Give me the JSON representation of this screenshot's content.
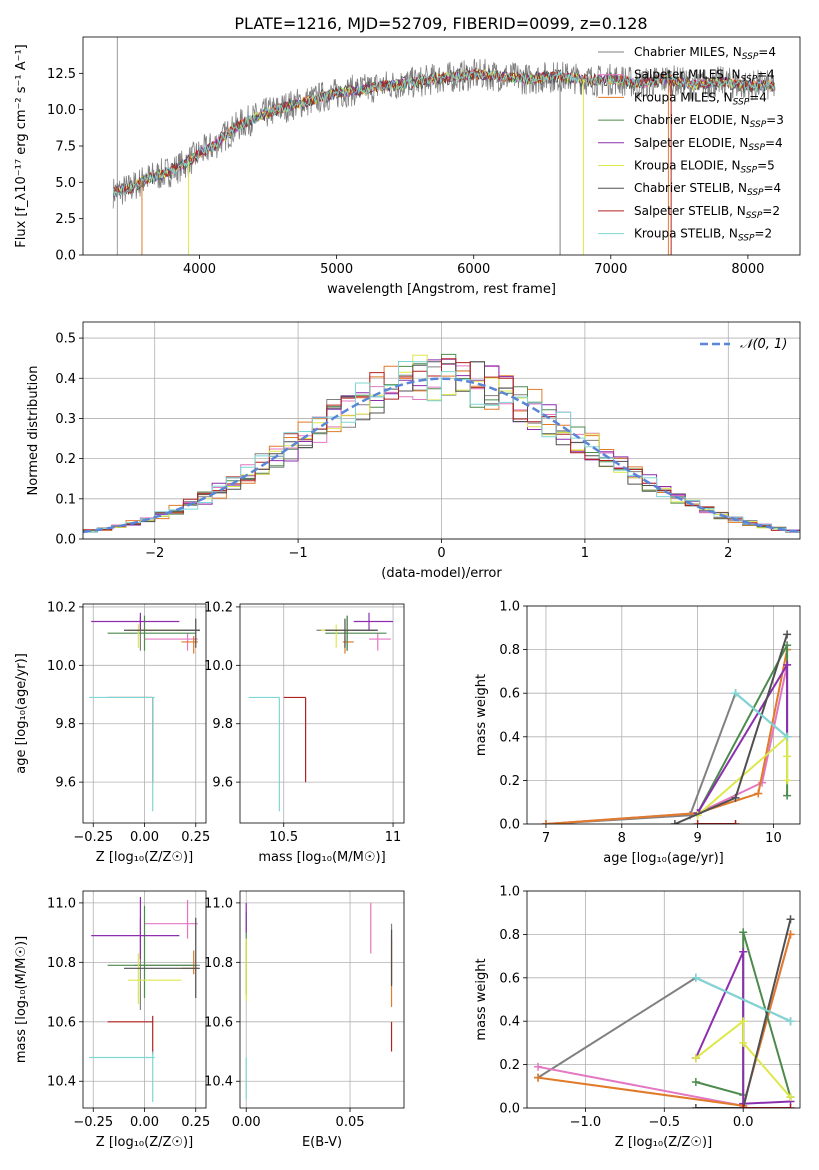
{
  "figure_title": "PLATE=1216, MJD=52709, FIBERID=0099, z=0.128",
  "colors": {
    "Chabrier MILES": "#808080",
    "Salpeter MILES": "#e377c2",
    "Kroupa MILES": "#e07b2a",
    "Chabrier ELODIE": "#4d8a4d",
    "Salpeter ELODIE": "#8b2fae",
    "Kroupa ELODIE": "#dde84a",
    "Chabrier STELIB": "#505050",
    "Salpeter STELIB": "#b22222",
    "Kroupa STELIB": "#7fd6d6",
    "normal": "#5b85d6"
  },
  "chart_data": [
    {
      "id": "spectrum",
      "type": "line",
      "xlabel": "wavelength [Angstrom, rest frame]",
      "ylabel": "Flux [f_λ10⁻¹⁷ erg cm⁻² s⁻¹ A⁻¹]",
      "xlim": [
        3150,
        8380
      ],
      "ylim": [
        0,
        15
      ],
      "xticks": [
        4000,
        5000,
        6000,
        7000,
        8000
      ],
      "yticks": [
        0.0,
        2.5,
        5.0,
        7.5,
        10.0,
        12.5
      ],
      "grid": false,
      "legend_position": "upper right",
      "series_envelope": {
        "x": [
          3370,
          3500,
          3600,
          3700,
          3800,
          3900,
          4000,
          4100,
          4200,
          4300,
          4400,
          4500,
          4600,
          4700,
          4800,
          4900,
          5000,
          5100,
          5200,
          5300,
          5400,
          5500,
          5600,
          5700,
          5800,
          5900,
          6000,
          6100,
          6200,
          6300,
          6400,
          6500,
          6600,
          6700,
          6800,
          6900,
          7000,
          7100,
          7200,
          7300,
          7400,
          7500,
          7600,
          7700,
          7800,
          7900,
          8000,
          8100,
          8200
        ],
        "y": [
          4.3,
          4.6,
          5.2,
          5.5,
          5.8,
          6.3,
          7.0,
          7.5,
          8.3,
          9.0,
          9.4,
          9.8,
          10.1,
          10.4,
          10.6,
          10.9,
          11.1,
          11.3,
          11.4,
          11.6,
          11.7,
          11.8,
          11.9,
          12.1,
          12.2,
          12.3,
          12.4,
          12.4,
          12.3,
          12.2,
          12.1,
          12.2,
          12.3,
          12.2,
          12.1,
          12.0,
          12.1,
          12.0,
          11.8,
          11.9,
          12.1,
          11.9,
          11.7,
          11.8,
          11.9,
          11.8,
          11.6,
          11.7,
          11.6
        ]
      },
      "series": [
        {
          "name": "Chabrier MILES, N_SSP=4",
          "name_main": "Chabrier MILES, N",
          "sub": "SSP",
          "suffix": "=4"
        },
        {
          "name": "Salpeter MILES, N_SSP=4",
          "name_main": "Salpeter MILES, N",
          "sub": "SSP",
          "suffix": "=4"
        },
        {
          "name": "Kroupa MILES, N_SSP=4",
          "name_main": "Kroupa MILES, N",
          "sub": "SSP",
          "suffix": "=4"
        },
        {
          "name": "Chabrier ELODIE, N_SSP=3",
          "name_main": "Chabrier ELODIE, N",
          "sub": "SSP",
          "suffix": "=3"
        },
        {
          "name": "Salpeter ELODIE, N_SSP=4",
          "name_main": "Salpeter ELODIE, N",
          "sub": "SSP",
          "suffix": "=4"
        },
        {
          "name": "Kroupa ELODIE, N_SSP=5",
          "name_main": "Kroupa ELODIE, N",
          "sub": "SSP",
          "suffix": "=5"
        },
        {
          "name": "Chabrier STELIB, N_SSP=4",
          "name_main": "Chabrier STELIB, N",
          "sub": "SSP",
          "suffix": "=4"
        },
        {
          "name": "Salpeter STELIB, N_SSP=2",
          "name_main": "Salpeter STELIB, N",
          "sub": "SSP",
          "suffix": "=2"
        },
        {
          "name": "Kroupa STELIB, N_SSP=2",
          "name_main": "Kroupa STELIB, N",
          "sub": "SSP",
          "suffix": "=2"
        }
      ]
    },
    {
      "id": "residuals",
      "type": "line",
      "xlabel": "(data-model)/error",
      "ylabel": "Normed distribution",
      "xlim": [
        -2.5,
        2.5
      ],
      "ylim": [
        0,
        0.54
      ],
      "xticks": [
        -2,
        -1,
        0,
        1,
        2
      ],
      "yticks": [
        0.0,
        0.1,
        0.2,
        0.3,
        0.4,
        0.5
      ],
      "grid": true,
      "legend_position": "upper right",
      "normal_label": "𝒩(0, 1)"
    },
    {
      "id": "age_vs_Z",
      "type": "scatter",
      "xlabel": "Z [log₁₀(Z/Z☉)]",
      "ylabel": "age  [log₁₀(age/yr)]",
      "xlim": [
        -0.3,
        0.3
      ],
      "ylim": [
        9.46,
        10.21
      ],
      "xticks": [
        -0.25,
        0.0,
        0.25
      ],
      "xticklabels": [
        "−0.25",
        "0.00",
        "0.25"
      ],
      "yticks": [
        9.6,
        9.8,
        10.0,
        10.2
      ],
      "grid": true
    },
    {
      "id": "age_vs_mass",
      "type": "scatter",
      "xlabel": "mass [log₁₀(M/M☉)]",
      "xlim": [
        10.3,
        11.05
      ],
      "ylim": [
        9.46,
        10.21
      ],
      "xticks": [
        10.5,
        11.0
      ],
      "yticks": [
        9.6,
        9.8,
        10.0,
        10.2
      ],
      "grid": true
    },
    {
      "id": "weight_vs_age",
      "type": "line",
      "xlabel": "age  [log₁₀(age/yr)]",
      "ylabel": "mass weight",
      "xlim": [
        6.75,
        10.35
      ],
      "ylim": [
        0,
        1
      ],
      "xticks": [
        7,
        8,
        9,
        10
      ],
      "yticks": [
        0.0,
        0.2,
        0.4,
        0.6,
        0.8,
        1.0
      ],
      "grid": true
    },
    {
      "id": "mass_vs_Z",
      "type": "scatter",
      "xlabel": "Z [log₁₀(Z/Z☉)]",
      "ylabel": "mass [log₁₀(M/M☉)]",
      "xlim": [
        -0.3,
        0.3
      ],
      "ylim": [
        10.31,
        11.04
      ],
      "xticks": [
        -0.25,
        0.0,
        0.25
      ],
      "xticklabels": [
        "−0.25",
        "0.00",
        "0.25"
      ],
      "yticks": [
        10.4,
        10.6,
        10.8,
        11.0
      ],
      "grid": true
    },
    {
      "id": "mass_vs_ebv",
      "type": "scatter",
      "xlabel": "E(B-V)",
      "xlim": [
        -0.003,
        0.076
      ],
      "ylim": [
        10.31,
        11.04
      ],
      "xticks": [
        0.0,
        0.05
      ],
      "xticklabels": [
        "0.00",
        "0.05"
      ],
      "yticks": [
        10.4,
        10.6,
        10.8,
        11.0
      ],
      "grid": true
    },
    {
      "id": "weight_vs_Z",
      "type": "line",
      "xlabel": "Z [log₁₀(Z/Z☉)]",
      "ylabel": "mass weight",
      "xlim": [
        -1.37,
        0.36
      ],
      "ylim": [
        0,
        1
      ],
      "xticks": [
        -1.0,
        -0.5,
        0.0
      ],
      "xticklabels": [
        "−1.0",
        "−0.5",
        "0.0"
      ],
      "yticks": [
        0.0,
        0.2,
        0.4,
        0.6,
        0.8,
        1.0
      ],
      "grid": true
    }
  ],
  "models": [
    {
      "key": "Chabrier MILES",
      "Z": -0.02,
      "age": 10.12,
      "mass": 10.79,
      "ebv": 0.07,
      "zerr": [
        -0.05,
        0.27
      ],
      "aerr": [
        10.05,
        10.17
      ],
      "merr_m": [
        10.65,
        10.93
      ],
      "eerr": [
        10.73,
        10.93
      ],
      "w_age": [
        [
          7.0,
          0.0
        ],
        [
          8.9,
          0.04
        ],
        [
          9.5,
          0.6
        ],
        [
          10.18,
          0.4
        ]
      ],
      "w_Z": [
        [
          -1.3,
          0.14
        ],
        [
          -0.3,
          0.6
        ],
        [
          0.3,
          0.4
        ]
      ]
    },
    {
      "key": "Salpeter MILES",
      "Z": 0.21,
      "age": 10.09,
      "mass": 10.93,
      "ebv": 0.06,
      "zerr": [
        0.0,
        0.26
      ],
      "aerr": [
        10.05,
        10.11
      ],
      "merr_m": [
        10.89,
        10.99
      ],
      "eerr": [
        10.83,
        11.0
      ],
      "w_age": [
        [
          7.0,
          0.0
        ],
        [
          9.0,
          0.05
        ],
        [
          9.85,
          0.19
        ],
        [
          10.18,
          0.73
        ]
      ],
      "w_Z": [
        [
          -1.3,
          0.19
        ],
        [
          0.0,
          0.01
        ],
        [
          0.3,
          0.8
        ]
      ]
    },
    {
      "key": "Kroupa MILES",
      "Z": 0.24,
      "age": 10.08,
      "mass": 10.78,
      "ebv": 0.07,
      "zerr": [
        0.18,
        0.26
      ],
      "aerr": [
        10.04,
        10.1
      ],
      "merr_m": [
        10.77,
        10.82
      ],
      "eerr": [
        10.65,
        10.88
      ],
      "w_age": [
        [
          7.0,
          0.0
        ],
        [
          9.0,
          0.05
        ],
        [
          9.8,
          0.14
        ],
        [
          10.18,
          0.8
        ]
      ],
      "w_Z": [
        [
          -1.3,
          0.14
        ],
        [
          0.0,
          0.01
        ],
        [
          0.3,
          0.8
        ]
      ]
    },
    {
      "key": "Chabrier ELODIE",
      "Z": 0.0,
      "age": 10.11,
      "mass": 10.79,
      "ebv": 0.0,
      "zerr": [
        -0.18,
        0.25
      ],
      "aerr": [
        10.05,
        10.17
      ],
      "merr_m": [
        10.69,
        10.97
      ],
      "eerr": [
        10.69,
        10.97
      ],
      "w_age": [
        [
          9.0,
          0.05
        ],
        [
          10.18,
          0.82
        ],
        [
          10.18,
          0.13
        ]
      ],
      "w_Z": [
        [
          -0.3,
          0.12
        ],
        [
          0.0,
          0.06
        ],
        [
          0.0,
          0.81
        ],
        [
          0.3,
          0.05
        ]
      ]
    },
    {
      "key": "Salpeter ELODIE",
      "Z": -0.02,
      "age": 10.15,
      "mass": 10.89,
      "ebv": 0.0,
      "zerr": [
        -0.26,
        0.17
      ],
      "aerr": [
        10.12,
        10.18
      ],
      "merr_m": [
        10.82,
        11.0
      ],
      "eerr": [
        10.9,
        11.0
      ],
      "w_age": [
        [
          9.0,
          0.05
        ],
        [
          10.18,
          0.73
        ],
        [
          10.18,
          0.4
        ]
      ],
      "w_Z": [
        [
          -0.3,
          0.23
        ],
        [
          0.0,
          0.72
        ],
        [
          0.0,
          0.02
        ],
        [
          0.3,
          0.03
        ]
      ]
    },
    {
      "key": "Kroupa ELODIE",
      "Z": -0.03,
      "age": 10.12,
      "mass": 10.74,
      "ebv": 0.0,
      "zerr": [
        -0.08,
        0.18
      ],
      "aerr": [
        10.06,
        10.14
      ],
      "merr_m": [
        10.67,
        10.81
      ],
      "eerr": [
        10.67,
        10.88
      ],
      "w_age": [
        [
          9.0,
          0.04
        ],
        [
          10.18,
          0.4
        ],
        [
          10.18,
          0.2
        ],
        [
          10.18,
          0.31
        ]
      ],
      "w_Z": [
        [
          -0.3,
          0.23
        ],
        [
          0.0,
          0.4
        ],
        [
          0.0,
          0.3
        ],
        [
          0.3,
          0.05
        ]
      ]
    },
    {
      "key": "Chabrier STELIB",
      "Z": 0.25,
      "age": 10.12,
      "mass": 10.78,
      "ebv": 0.07,
      "zerr": [
        -0.1,
        0.27
      ],
      "aerr": [
        10.06,
        10.16
      ],
      "merr_m": [
        10.69,
        10.93
      ],
      "eerr": [
        10.72,
        10.91
      ],
      "w_age": [
        [
          8.7,
          0.0
        ],
        [
          9.5,
          0.12
        ],
        [
          10.18,
          0.87
        ]
      ],
      "w_Z": [
        [
          -0.3,
          0.0
        ],
        [
          0.0,
          0.0
        ],
        [
          0.3,
          0.87
        ]
      ]
    },
    {
      "key": "Salpeter STELIB",
      "Z": 0.04,
      "age": 9.89,
      "mass": 10.6,
      "ebv": 0.07,
      "zerr": [
        -0.18,
        0.04
      ],
      "aerr": [
        9.6,
        9.89
      ],
      "merr_m": [
        10.5,
        10.6
      ],
      "eerr": [
        10.5,
        10.6
      ],
      "w_age": [
        [
          9.0,
          0.0
        ],
        [
          9.5,
          0.0
        ]
      ],
      "w_Z": [
        [
          0.0,
          0.0
        ],
        [
          0.3,
          0.0
        ]
      ]
    },
    {
      "key": "Kroupa STELIB",
      "Z": 0.04,
      "age": 9.89,
      "mass": 10.48,
      "ebv": 0.0,
      "zerr": [
        -0.27,
        0.05
      ],
      "aerr": [
        9.5,
        9.89
      ],
      "merr_m": [
        10.34,
        10.48
      ],
      "eerr": [
        10.34,
        10.48
      ],
      "w_age": [
        [
          9.5,
          0.6
        ],
        [
          10.18,
          0.4
        ]
      ],
      "w_Z": [
        [
          -0.3,
          0.6
        ],
        [
          0.3,
          0.4
        ]
      ]
    }
  ]
}
